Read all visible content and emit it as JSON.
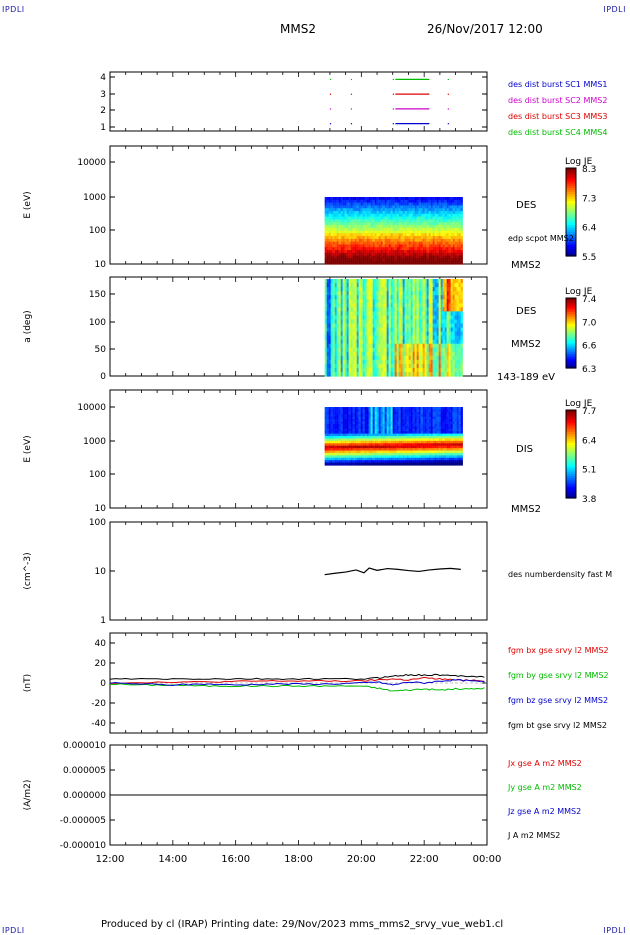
{
  "header": {
    "corner_label": "IPDLI",
    "spacecraft": "MMS2",
    "datetime": "26/Nov/2017 12:00"
  },
  "footer": {
    "text": "Produced by cl (IRAP)   Printing date: 29/Nov/2023   mms_mms2_srvy_vue_web1.cl"
  },
  "colors": {
    "blue": "#0000cc",
    "magenta": "#cc00cc",
    "red": "#dd0000",
    "green": "#00bb00",
    "black": "#000000"
  },
  "chart_data": [
    {
      "type": "line",
      "panel": "burst",
      "ylim": [
        0.5,
        4.5
      ],
      "yticks": [
        "4",
        "3",
        "2",
        "1"
      ],
      "legend": [
        {
          "label": "des dist burst SC1 MMS1",
          "color": "blue"
        },
        {
          "label": "des dist burst SC2 MMS2",
          "color": "magenta"
        },
        {
          "label": "des dist burst SC3 MMS3",
          "color": "red"
        },
        {
          "label": "des dist burst SC4 MMS4",
          "color": "green"
        }
      ],
      "segments": [
        {
          "sc": 4,
          "start": "21:05",
          "end": "22:10",
          "color": "green"
        },
        {
          "sc": 3,
          "start": "21:05",
          "end": "22:10",
          "color": "red"
        },
        {
          "sc": 2,
          "start": "21:05",
          "end": "22:10",
          "color": "magenta"
        },
        {
          "sc": 1,
          "start": "21:05",
          "end": "22:10",
          "color": "blue"
        }
      ]
    },
    {
      "type": "heatmap",
      "panel": "des_energy",
      "ylabel": "E (eV)",
      "scale": "log",
      "ylim": [
        10,
        20000
      ],
      "yticks": [
        "10000",
        "1000",
        "100",
        "10"
      ],
      "time_range": [
        "18:50",
        "23:15"
      ],
      "label": "DES",
      "sublabel": "edp scpot MMS2",
      "tag": "MMS2",
      "colorbar": {
        "title": "Log JE",
        "ticks": [
          "8.3",
          "7.3",
          "6.4",
          "5.5"
        ]
      }
    },
    {
      "type": "heatmap",
      "panel": "des_pitch",
      "ylabel": "a (deg)",
      "ylim": [
        0,
        180
      ],
      "yticks": [
        "150",
        "100",
        "50",
        "0"
      ],
      "time_range": [
        "18:50",
        "23:15"
      ],
      "label": "DES",
      "sublabel": "MMS2",
      "tag": "143-189 eV",
      "colorbar": {
        "title": "Log JE",
        "ticks": [
          "7.4",
          "7.0",
          "6.6",
          "6.3"
        ]
      }
    },
    {
      "type": "heatmap",
      "panel": "dis_energy",
      "ylabel": "E (eV)",
      "scale": "log",
      "ylim": [
        10,
        12000
      ],
      "yticks": [
        "10000",
        "1000",
        "100",
        "10"
      ],
      "time_range": [
        "18:50",
        "23:15"
      ],
      "label": "DIS",
      "tag": "MMS2",
      "colorbar": {
        "title": "Log JE",
        "ticks": [
          "7.7",
          "6.4",
          "5.1",
          "3.8"
        ]
      }
    },
    {
      "type": "line",
      "panel": "density",
      "ylabel": "(cm^-3)",
      "scale": "log",
      "ylim": [
        1,
        100
      ],
      "yticks": [
        "100",
        "10",
        "1"
      ],
      "legend": [
        {
          "label": "des numberdensity fast M",
          "color": "black"
        }
      ],
      "series": [
        {
          "name": "des numberdensity fast M",
          "color": "black",
          "x": [
            "18:50",
            "19:10",
            "19:30",
            "19:50",
            "20:05",
            "20:15",
            "20:30",
            "20:50",
            "21:10",
            "21:30",
            "21:50",
            "22:10",
            "22:30",
            "22:50",
            "23:10"
          ],
          "y": [
            8.4,
            9.0,
            9.5,
            10.5,
            9.2,
            11.5,
            10.3,
            11.2,
            10.8,
            10.2,
            9.8,
            10.5,
            11.0,
            11.3,
            10.8
          ]
        }
      ]
    },
    {
      "type": "line",
      "panel": "fgm",
      "ylabel": "(nT)",
      "ylim": [
        -50,
        50
      ],
      "yticks": [
        "40",
        "20",
        "0",
        "-20",
        "-40"
      ],
      "legend": [
        {
          "label": "fgm bx gse srvy l2 MMS2",
          "color": "red"
        },
        {
          "label": "fgm by gse srvy l2 MMS2",
          "color": "green"
        },
        {
          "label": "fgm bz gse srvy l2 MMS2",
          "color": "blue"
        },
        {
          "label": "fgm bt gse srvy l2 MMS2",
          "color": "black"
        }
      ],
      "x": [
        "12:00",
        "13:00",
        "14:00",
        "15:00",
        "16:00",
        "17:00",
        "18:00",
        "19:00",
        "20:00",
        "20:30",
        "21:00",
        "21:30",
        "22:00",
        "22:30",
        "23:00",
        "23:30",
        "24:00"
      ],
      "series": [
        {
          "name": "fgm bx gse srvy l2 MMS2",
          "color": "red",
          "y": [
            0,
            0.5,
            1,
            1,
            1.5,
            2,
            2,
            2,
            2,
            3,
            4,
            3,
            5,
            4,
            3,
            3,
            2
          ]
        },
        {
          "name": "fgm by gse srvy l2 MMS2",
          "color": "green",
          "y": [
            -1,
            -2,
            -2,
            -3,
            -3,
            -3,
            -3,
            -3,
            -3,
            -5,
            -8,
            -7,
            -6,
            -7,
            -6,
            -6,
            -5
          ]
        },
        {
          "name": "fgm bz gse srvy l2 MMS2",
          "color": "blue",
          "y": [
            0,
            -1,
            -2,
            -1,
            -2,
            -1,
            -1,
            -1,
            0,
            1,
            -2,
            1,
            0,
            2,
            3,
            2,
            1
          ]
        },
        {
          "name": "fgm bt gse srvy l2 MMS2",
          "color": "black",
          "y": [
            4,
            4,
            4,
            4,
            4,
            4,
            4,
            4,
            4,
            5,
            7,
            8,
            8,
            8,
            7,
            7,
            6
          ]
        }
      ]
    },
    {
      "type": "line",
      "panel": "current",
      "ylabel": "(A/m2)",
      "ylim": [
        -1e-05,
        1e-05
      ],
      "yticks": [
        "0.000010",
        "0.000005",
        "0.000000",
        "-0.000005",
        "-0.000010"
      ],
      "xticks": [
        "12:00",
        "14:00",
        "16:00",
        "18:00",
        "20:00",
        "22:00",
        "00:00"
      ],
      "legend": [
        {
          "label": "Jx gse A m2 MMS2",
          "color": "red"
        },
        {
          "label": "Jy gse A m2 MMS2",
          "color": "green"
        },
        {
          "label": "Jz gse A m2 MMS2",
          "color": "blue"
        },
        {
          "label": "J A m2 MMS2",
          "color": "black"
        }
      ],
      "series": [
        {
          "name": "J A m2 MMS2",
          "color": "black",
          "x": [
            "12:00",
            "24:00"
          ],
          "y": [
            0.0,
            0.0
          ]
        }
      ]
    }
  ]
}
